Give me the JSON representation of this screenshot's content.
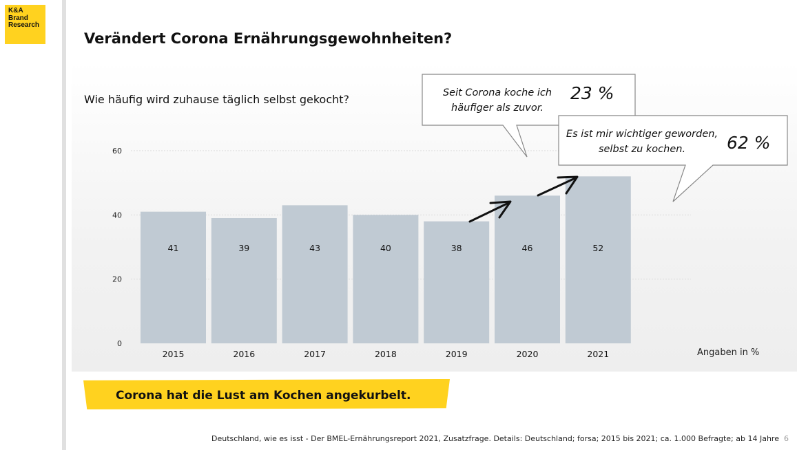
{
  "logo": {
    "lines": [
      "K&A",
      "Brand",
      "Research"
    ]
  },
  "title": "Verändert Corona Ernährungsgewohnheiten?",
  "question": "Wie häufig wird zuhause täglich selbst gekocht?",
  "unit_note": "Angaben in %",
  "callouts": [
    {
      "text": "Seit Corona koche ich häufiger als zuvor.",
      "value": "23 %"
    },
    {
      "text": "Es ist mir wichtiger geworden, selbst zu kochen.",
      "value": "62 %"
    }
  ],
  "banner": "Corona hat die Lust am Kochen angekurbelt.",
  "footer": "Deutschland, wie es isst - Der BMEL-Ernährungsreport 2021, Zusatzfrage. Details: Deutschland; forsa; 2015 bis 2021; ca. 1.000 Befragte; ab 14 Jahre",
  "page_number": "6",
  "colors": {
    "bar": "#c0cad3",
    "accent": "#ffd21f",
    "grid": "#d9d9d9"
  },
  "chart_data": {
    "type": "bar",
    "categories": [
      "2015",
      "2016",
      "2017",
      "2018",
      "2019",
      "2020",
      "2021"
    ],
    "values": [
      41,
      39,
      43,
      40,
      38,
      46,
      52
    ],
    "ylim": [
      0,
      60
    ],
    "yticks": [
      0,
      20,
      40,
      60
    ],
    "grid": true
  }
}
